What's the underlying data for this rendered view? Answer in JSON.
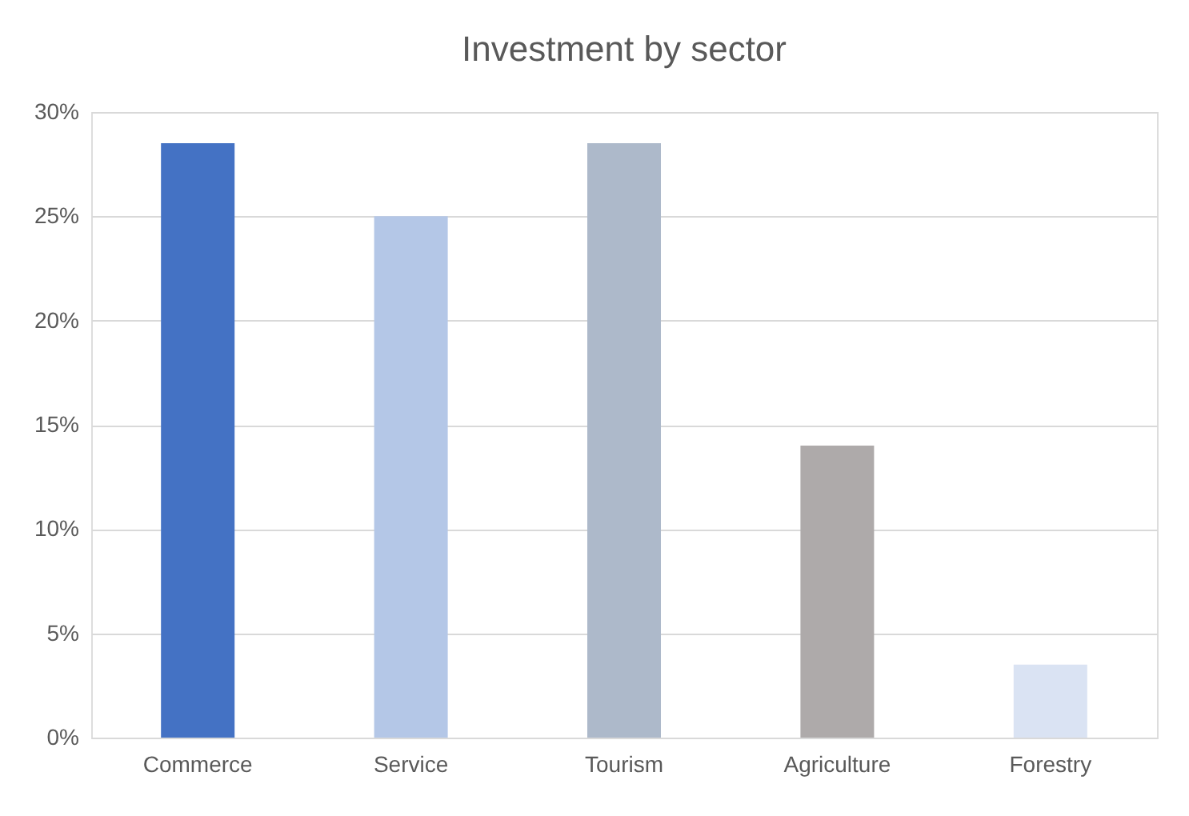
{
  "chart_data": {
    "type": "bar",
    "title": "Investment by sector",
    "categories": [
      "Commerce",
      "Service",
      "Tourism",
      "Agriculture",
      "Forestry"
    ],
    "values": [
      28.5,
      25,
      28.5,
      14,
      3.5
    ],
    "colors": [
      "#4472c4",
      "#b4c7e7",
      "#adb9ca",
      "#aeaaaa",
      "#dae3f3"
    ],
    "ylim": [
      0,
      30
    ],
    "yticks": [
      {
        "value": 0,
        "label": "0%"
      },
      {
        "value": 5,
        "label": "5%"
      },
      {
        "value": 10,
        "label": "10%"
      },
      {
        "value": 15,
        "label": "15%"
      },
      {
        "value": 20,
        "label": "20%"
      },
      {
        "value": 25,
        "label": "25%"
      },
      {
        "value": 30,
        "label": "30%"
      }
    ],
    "grid": "y"
  }
}
